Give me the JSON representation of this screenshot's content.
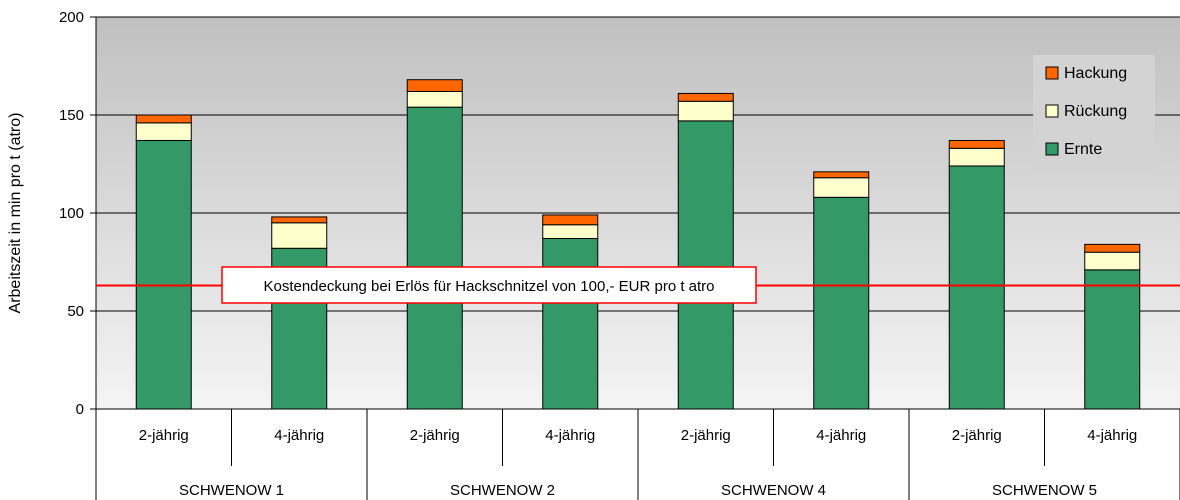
{
  "chart_data": {
    "type": "bar",
    "stacked": true,
    "ylabel": "Arbeitszeit in min pro t (atro)",
    "ylim": [
      0,
      200
    ],
    "yticks": [
      0,
      50,
      100,
      150,
      200
    ],
    "grid": true,
    "legend_position": "top-right",
    "groups": [
      "SCHWENOW 1",
      "SCHWENOW 2",
      "SCHWENOW 4",
      "SCHWENOW 5"
    ],
    "categories": [
      "2-jährig",
      "4-jährig",
      "2-jährig",
      "4-jährig",
      "2-jährig",
      "4-jährig",
      "2-jährig",
      "4-jährig"
    ],
    "series": [
      {
        "name": "Ernte",
        "color": "#339966",
        "values": [
          137,
          82,
          154,
          87,
          147,
          108,
          124,
          71
        ]
      },
      {
        "name": "Rückung",
        "color": "#FFFFCC",
        "values": [
          9,
          13,
          8,
          7,
          10,
          10,
          9,
          9
        ]
      },
      {
        "name": "Hackung",
        "color": "#FF6600",
        "values": [
          4,
          3,
          6,
          5,
          4,
          3,
          4,
          4
        ]
      }
    ],
    "reference_line": {
      "value": 63,
      "color": "#FF0000",
      "label": "Kostendeckung bei Erlös für Hackschnitzel von 100,- EUR pro t atro"
    },
    "plot_background": "#C0C0C0"
  }
}
